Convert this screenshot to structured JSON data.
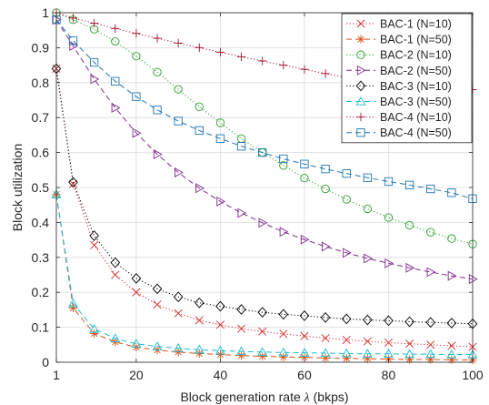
{
  "chart_data": {
    "type": "line",
    "title": "",
    "xlabel": "Block generation rate λ (bkps)",
    "xlabel_parts": [
      "Block generation rate ",
      "λ",
      " (bkps)"
    ],
    "ylabel": "Block utilization",
    "xlim": [
      1,
      100
    ],
    "ylim": [
      0,
      1
    ],
    "xticks": [
      1,
      20,
      40,
      60,
      80,
      100
    ],
    "yticks": [
      0,
      0.1,
      0.2,
      0.3,
      0.4,
      0.5,
      0.6,
      0.7,
      0.8,
      0.9,
      1
    ],
    "ytick_labels": [
      "0",
      "0.1",
      "0.2",
      "0.3",
      "0.4",
      "0.5",
      "0.6",
      "0.7",
      "0.8",
      "0.9",
      "1"
    ],
    "grid": true,
    "legend_position": "top-right",
    "x": [
      1,
      5,
      10,
      15,
      20,
      25,
      30,
      35,
      40,
      45,
      50,
      55,
      60,
      65,
      70,
      75,
      80,
      85,
      90,
      95,
      100
    ],
    "series": [
      {
        "name": "BAC-1 (N=10)",
        "color": "#d62728",
        "dash": "dotted",
        "marker": "x",
        "values": [
          0.84,
          0.51,
          0.335,
          0.25,
          0.2,
          0.165,
          0.14,
          0.12,
          0.107,
          0.096,
          0.088,
          0.081,
          0.075,
          0.069,
          0.064,
          0.06,
          0.056,
          0.053,
          0.05,
          0.047,
          0.044
        ]
      },
      {
        "name": "BAC-1 (N=50)",
        "color": "#d95319",
        "dash": "dashed",
        "marker": "star",
        "values": [
          0.48,
          0.155,
          0.082,
          0.058,
          0.043,
          0.035,
          0.029,
          0.025,
          0.022,
          0.019,
          0.017,
          0.015,
          0.014,
          0.012,
          0.011,
          0.01,
          0.009,
          0.008,
          0.008,
          0.007,
          0.006
        ]
      },
      {
        "name": "BAC-2 (N=10)",
        "color": "#2ca02c",
        "dash": "dotted",
        "marker": "circle",
        "values": [
          1.0,
          0.98,
          0.953,
          0.918,
          0.876,
          0.83,
          0.781,
          0.731,
          0.685,
          0.64,
          0.6,
          0.563,
          0.527,
          0.496,
          0.466,
          0.439,
          0.414,
          0.392,
          0.372,
          0.354,
          0.338
        ]
      },
      {
        "name": "BAC-2 (N=50)",
        "color": "#7e2f8e",
        "dash": "dashed",
        "marker": "triangle-right",
        "values": [
          0.98,
          0.905,
          0.81,
          0.728,
          0.656,
          0.595,
          0.543,
          0.498,
          0.46,
          0.427,
          0.399,
          0.373,
          0.351,
          0.331,
          0.313,
          0.297,
          0.283,
          0.27,
          0.258,
          0.247,
          0.238
        ]
      },
      {
        "name": "BAC-3 (N=10)",
        "color": "#000000",
        "dash": "dotted",
        "marker": "diamond",
        "values": [
          0.84,
          0.515,
          0.362,
          0.285,
          0.24,
          0.21,
          0.187,
          0.17,
          0.16,
          0.151,
          0.143,
          0.137,
          0.133,
          0.128,
          0.124,
          0.121,
          0.119,
          0.116,
          0.114,
          0.112,
          0.11
        ]
      },
      {
        "name": "BAC-3 (N=50)",
        "color": "#17becf",
        "dash": "dashed",
        "marker": "triangle-up",
        "values": [
          0.48,
          0.168,
          0.095,
          0.068,
          0.053,
          0.045,
          0.04,
          0.036,
          0.033,
          0.031,
          0.029,
          0.028,
          0.027,
          0.026,
          0.025,
          0.024,
          0.024,
          0.023,
          0.023,
          0.022,
          0.022
        ]
      },
      {
        "name": "BAC-4 (N=10)",
        "color": "#a2142f",
        "dash": "dotted",
        "marker": "plus",
        "values": [
          1.0,
          0.985,
          0.97,
          0.955,
          0.941,
          0.927,
          0.913,
          0.9,
          0.887,
          0.874,
          0.862,
          0.85,
          0.838,
          0.826,
          0.815,
          0.804,
          0.793,
          0.783,
          0.773,
          0.763,
          0.78
        ]
      },
      {
        "name": "BAC-4 (N=50)",
        "color": "#1f77b4",
        "dash": "dashed",
        "marker": "square",
        "values": [
          0.98,
          0.92,
          0.858,
          0.804,
          0.76,
          0.722,
          0.69,
          0.663,
          0.64,
          0.618,
          0.6,
          0.582,
          0.567,
          0.553,
          0.54,
          0.528,
          0.517,
          0.507,
          0.496,
          0.485,
          0.468
        ]
      }
    ]
  }
}
